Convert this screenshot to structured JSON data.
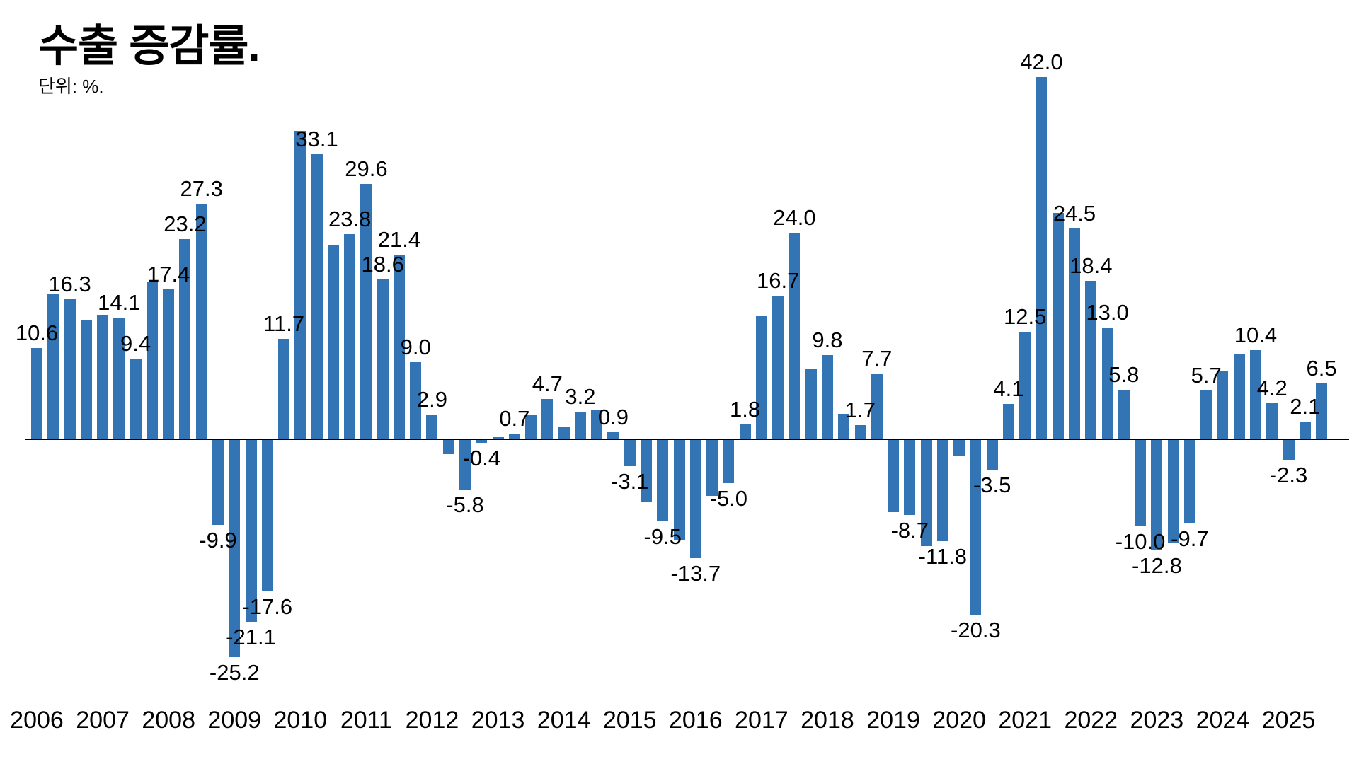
{
  "title": "수출 증감률.",
  "subtitle": "단위: %.",
  "colors": {
    "bar": "#3374b5",
    "axis": "#000000",
    "text": "#000000",
    "background": "#ffffff"
  },
  "chart_data": {
    "type": "bar",
    "title": "수출 증감률.",
    "unit_label": "단위: %.",
    "xlabel": "",
    "ylabel": "",
    "grid": false,
    "legend": false,
    "ylim": [
      -27,
      44
    ],
    "baseline": 0,
    "x_tick_labels": [
      "2006",
      "2007",
      "2008",
      "2009",
      "2010",
      "2011",
      "2012",
      "2013",
      "2014",
      "2015",
      "2016",
      "2017",
      "2018",
      "2019",
      "2020",
      "2021",
      "2022",
      "2023",
      "2024",
      "2025"
    ],
    "points": [
      {
        "period": "2006 Q1",
        "value": 10.6,
        "label": "10.6"
      },
      {
        "period": "2006 Q2",
        "value": 16.9,
        "label": null
      },
      {
        "period": "2006 Q3",
        "value": 16.3,
        "label": "16.3"
      },
      {
        "period": "2006 Q4",
        "value": 13.8,
        "label": null
      },
      {
        "period": "2007 Q1",
        "value": 14.5,
        "label": null
      },
      {
        "period": "2007 Q2",
        "value": 14.1,
        "label": "14.1"
      },
      {
        "period": "2007 Q3",
        "value": 9.4,
        "label": "9.4"
      },
      {
        "period": "2007 Q4",
        "value": 18.2,
        "label": null
      },
      {
        "period": "2008 Q1",
        "value": 17.4,
        "label": "17.4"
      },
      {
        "period": "2008 Q2",
        "value": 23.2,
        "label": "23.2"
      },
      {
        "period": "2008 Q3",
        "value": 27.3,
        "label": "27.3"
      },
      {
        "period": "2008 Q4",
        "value": -9.9,
        "label": "-9.9"
      },
      {
        "period": "2009 Q1",
        "value": -25.2,
        "label": "-25.2"
      },
      {
        "period": "2009 Q2",
        "value": -21.1,
        "label": "-21.1"
      },
      {
        "period": "2009 Q3",
        "value": -17.6,
        "label": "-17.6"
      },
      {
        "period": "2009 Q4",
        "value": 11.7,
        "label": "11.7"
      },
      {
        "period": "2010 Q1",
        "value": 35.8,
        "label": null
      },
      {
        "period": "2010 Q2",
        "value": 33.1,
        "label": "33.1"
      },
      {
        "period": "2010 Q3",
        "value": 22.6,
        "label": null
      },
      {
        "period": "2010 Q4",
        "value": 23.8,
        "label": "23.8"
      },
      {
        "period": "2011 Q1",
        "value": 29.6,
        "label": "29.6"
      },
      {
        "period": "2011 Q2",
        "value": 18.6,
        "label": "18.6"
      },
      {
        "period": "2011 Q3",
        "value": 21.4,
        "label": "21.4"
      },
      {
        "period": "2011 Q4",
        "value": 9.0,
        "label": "9.0"
      },
      {
        "period": "2012 Q1",
        "value": 2.9,
        "label": "2.9"
      },
      {
        "period": "2012 Q2",
        "value": -1.7,
        "label": null
      },
      {
        "period": "2012 Q3",
        "value": -5.8,
        "label": "-5.8"
      },
      {
        "period": "2012 Q4",
        "value": -0.4,
        "label": "-0.4"
      },
      {
        "period": "2013 Q1",
        "value": 0.3,
        "label": null
      },
      {
        "period": "2013 Q2",
        "value": 0.7,
        "label": "0.7"
      },
      {
        "period": "2013 Q3",
        "value": 2.8,
        "label": null
      },
      {
        "period": "2013 Q4",
        "value": 4.7,
        "label": "4.7"
      },
      {
        "period": "2014 Q1",
        "value": 1.5,
        "label": null
      },
      {
        "period": "2014 Q2",
        "value": 3.2,
        "label": "3.2"
      },
      {
        "period": "2014 Q3",
        "value": 3.5,
        "label": null
      },
      {
        "period": "2014 Q4",
        "value": 0.9,
        "label": "0.9"
      },
      {
        "period": "2015 Q1",
        "value": -3.1,
        "label": "-3.1"
      },
      {
        "period": "2015 Q2",
        "value": -7.2,
        "label": null
      },
      {
        "period": "2015 Q3",
        "value": -9.5,
        "label": "-9.5"
      },
      {
        "period": "2015 Q4",
        "value": -11.7,
        "label": null
      },
      {
        "period": "2016 Q1",
        "value": -13.7,
        "label": "-13.7"
      },
      {
        "period": "2016 Q2",
        "value": -6.5,
        "label": null
      },
      {
        "period": "2016 Q3",
        "value": -5.0,
        "label": "-5.0"
      },
      {
        "period": "2016 Q4",
        "value": 1.8,
        "label": "1.8"
      },
      {
        "period": "2017 Q1",
        "value": 14.4,
        "label": null
      },
      {
        "period": "2017 Q2",
        "value": 16.7,
        "label": "16.7"
      },
      {
        "period": "2017 Q3",
        "value": 24.0,
        "label": "24.0"
      },
      {
        "period": "2017 Q4",
        "value": 8.2,
        "label": null
      },
      {
        "period": "2018 Q1",
        "value": 9.8,
        "label": "9.8"
      },
      {
        "period": "2018 Q2",
        "value": 3.0,
        "label": null
      },
      {
        "period": "2018 Q3",
        "value": 1.7,
        "label": "1.7"
      },
      {
        "period": "2018 Q4",
        "value": 7.7,
        "label": "7.7"
      },
      {
        "period": "2019 Q1",
        "value": -8.4,
        "label": null
      },
      {
        "period": "2019 Q2",
        "value": -8.7,
        "label": "-8.7"
      },
      {
        "period": "2019 Q3",
        "value": -12.3,
        "label": null
      },
      {
        "period": "2019 Q4",
        "value": -11.8,
        "label": "-11.8"
      },
      {
        "period": "2020 Q1",
        "value": -1.9,
        "label": null
      },
      {
        "period": "2020 Q2",
        "value": -20.3,
        "label": "-20.3"
      },
      {
        "period": "2020 Q3",
        "value": -3.5,
        "label": "-3.5"
      },
      {
        "period": "2020 Q4",
        "value": 4.1,
        "label": "4.1"
      },
      {
        "period": "2021 Q1",
        "value": 12.5,
        "label": "12.5"
      },
      {
        "period": "2021 Q2",
        "value": 42.0,
        "label": "42.0"
      },
      {
        "period": "2021 Q3",
        "value": 26.3,
        "label": null
      },
      {
        "period": "2021 Q4",
        "value": 24.5,
        "label": "24.5"
      },
      {
        "period": "2022 Q1",
        "value": 18.4,
        "label": "18.4"
      },
      {
        "period": "2022 Q2",
        "value": 13.0,
        "label": "13.0"
      },
      {
        "period": "2022 Q3",
        "value": 5.8,
        "label": "5.8"
      },
      {
        "period": "2022 Q4",
        "value": -10.0,
        "label": "-10.0"
      },
      {
        "period": "2023 Q1",
        "value": -12.8,
        "label": "-12.8"
      },
      {
        "period": "2023 Q2",
        "value": -11.9,
        "label": null
      },
      {
        "period": "2023 Q3",
        "value": -9.7,
        "label": "-9.7"
      },
      {
        "period": "2023 Q4",
        "value": 5.7,
        "label": "5.7"
      },
      {
        "period": "2024 Q1",
        "value": 8.0,
        "label": null
      },
      {
        "period": "2024 Q2",
        "value": 10.0,
        "label": null
      },
      {
        "period": "2024 Q3",
        "value": 10.4,
        "label": "10.4"
      },
      {
        "period": "2024 Q4",
        "value": 4.2,
        "label": "4.2"
      },
      {
        "period": "2025 Q1",
        "value": -2.3,
        "label": "-2.3"
      },
      {
        "period": "2025 Q2",
        "value": 2.1,
        "label": "2.1"
      },
      {
        "period": "2025 Q3",
        "value": 6.5,
        "label": "6.5"
      }
    ]
  }
}
